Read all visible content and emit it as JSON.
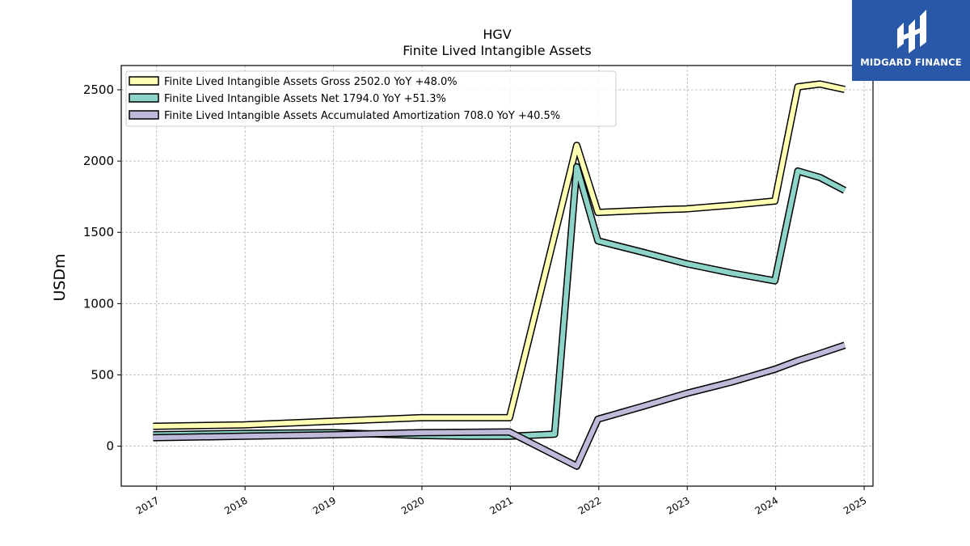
{
  "chart_data": {
    "type": "line",
    "title": "HGV",
    "subtitle": "Finite Lived Intangible Assets",
    "xlabel": "",
    "ylabel": "USDm",
    "xlim": [
      2016.6,
      2025.1
    ],
    "ylim": [
      -280,
      2670
    ],
    "x_ticks": [
      2017,
      2018,
      2019,
      2020,
      2021,
      2022,
      2023,
      2024,
      2025
    ],
    "y_ticks": [
      0,
      500,
      1000,
      1500,
      2000,
      2500
    ],
    "grid": true,
    "legend_position": "top-left",
    "series": [
      {
        "name": "Finite Lived Intangible Assets Gross  2502.0 YoY +48.0%",
        "color": "#ffffb3",
        "x": [
          2016.96,
          2017.99,
          2018.99,
          2019.99,
          2020.99,
          2021.75,
          2021.99,
          2022.75,
          2022.99,
          2023.5,
          2023.99,
          2024.25,
          2024.5,
          2024.78
        ],
        "y": [
          140,
          150,
          175,
          200,
          200,
          2110,
          1640,
          1660,
          1665,
          1690,
          1720,
          2520,
          2540,
          2502
        ]
      },
      {
        "name": "Finite Lived Intangible Assets Net  1794.0 YoY +51.3%",
        "color": "#8dd3c7",
        "x": [
          2016.96,
          2017.99,
          2018.99,
          2019.99,
          2020.49,
          2020.99,
          2021.5,
          2021.75,
          2021.99,
          2022.5,
          2022.99,
          2023.5,
          2023.99,
          2024.25,
          2024.5,
          2024.78
        ],
        "y": [
          80,
          90,
          95,
          75,
          70,
          70,
          85,
          1960,
          1440,
          1360,
          1280,
          1215,
          1160,
          1930,
          1885,
          1794
        ]
      },
      {
        "name": "Finite Lived Intangible Assets Accumulated Amortization  708.0 YoY +40.5%",
        "color": "#bebada",
        "x": [
          2016.96,
          2017.99,
          2018.99,
          2019.99,
          2020.99,
          2021.75,
          2021.99,
          2022.5,
          2022.99,
          2023.5,
          2023.99,
          2024.25,
          2024.5,
          2024.78
        ],
        "y": [
          60,
          70,
          80,
          95,
          100,
          -140,
          190,
          280,
          370,
          450,
          540,
          600,
          650,
          708
        ]
      }
    ]
  },
  "logo": {
    "text": "MIDGARD FINANCE"
  }
}
